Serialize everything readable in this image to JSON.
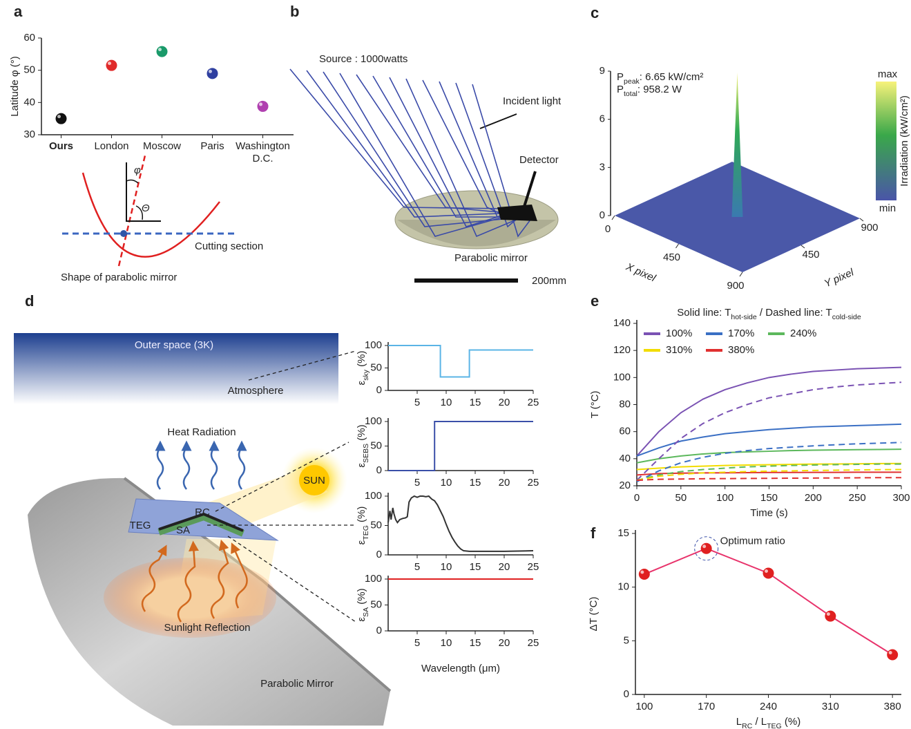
{
  "panel_labels": [
    "a",
    "b",
    "c",
    "d",
    "e",
    "f"
  ],
  "diagram_a": {
    "phi": "φ",
    "theta": "Θ",
    "cutting": "Cutting section",
    "shape": "Shape of parabolic mirror"
  },
  "diagram_b": {
    "source": "Source : 1000watts",
    "incident": "Incident light",
    "detector": "Detector",
    "mirror": "Parabolic mirror",
    "scale": "200mm"
  },
  "diagram_d": {
    "space": "Outer space (3K)",
    "atmosphere": "Atmosphere",
    "heat": "Heat Radiation",
    "sun": "SUN",
    "rc": "RC",
    "teg": "TEG",
    "sa": "SA",
    "reflection": "Sunlight Reflection",
    "mirror": "Parabolic Mirror"
  },
  "chart_data": [
    {
      "type": "scatter",
      "categories": [
        "Ours",
        "London",
        "Moscow",
        "Paris",
        "Washington D.C."
      ],
      "values": [
        35,
        51.5,
        55.8,
        49,
        38.8
      ],
      "colors": [
        "#111111",
        "#e02a2a",
        "#1a9a6a",
        "#2f3fa0",
        "#b040b0"
      ],
      "ylabel": "Latitude φ (°)",
      "ylim": [
        30,
        60
      ],
      "yticks": [
        30,
        40,
        50,
        60
      ]
    },
    {
      "type": "surface3d",
      "annotations": [
        [
          "P",
          "peak",
          ": 6.65 kW/cm²"
        ],
        [
          "P",
          "total",
          ": 958.2 W"
        ]
      ],
      "xlabel": "X pixel",
      "ylabel": "Y pixel",
      "xlim": [
        0,
        900
      ],
      "ylim": [
        0,
        900
      ],
      "zlim": [
        0,
        9
      ],
      "xticks": [
        0,
        450,
        900
      ],
      "yticks": [
        450,
        900
      ],
      "zticks": [
        0,
        3,
        6,
        9
      ],
      "peak": {
        "x": 450,
        "y": 450,
        "z": 9
      },
      "colorbar": {
        "label": "Irradiation (kW/cm²)",
        "max": "max",
        "min": "min"
      }
    },
    {
      "type": "line",
      "ylabel": [
        "ε",
        "sky",
        " (%)"
      ],
      "x": [
        0,
        9,
        9,
        14,
        14,
        25
      ],
      "series": [
        {
          "color": "#5ab4e6",
          "values": [
            100,
            100,
            30,
            30,
            90,
            90
          ]
        }
      ],
      "xlim": [
        0,
        25
      ],
      "ylim": [
        0,
        100
      ],
      "xticks": [
        5,
        10,
        15,
        20,
        25
      ],
      "yticks": [
        0,
        50,
        100
      ]
    },
    {
      "type": "line",
      "ylabel": [
        "ε",
        "SEBS",
        " (%)"
      ],
      "x": [
        0,
        8,
        8,
        25
      ],
      "series": [
        {
          "color": "#3a4fa8",
          "values": [
            0,
            0,
            100,
            100
          ]
        }
      ],
      "xlim": [
        0,
        25
      ],
      "ylim": [
        0,
        100
      ],
      "xticks": [
        5,
        10,
        15,
        20,
        25
      ],
      "yticks": [
        0,
        50,
        100
      ]
    },
    {
      "type": "line",
      "ylabel": [
        "ε",
        "TEG",
        " (%)"
      ],
      "x": [
        0,
        0.3,
        0.5,
        0.8,
        1,
        1.3,
        1.6,
        2,
        2.5,
        3,
        3.3,
        3.6,
        4,
        4.5,
        5,
        5.5,
        6,
        6.5,
        7,
        7.5,
        8,
        8.5,
        9,
        9.5,
        10,
        10.5,
        11,
        11.5,
        12,
        12.5,
        13,
        14,
        15,
        17,
        20,
        25
      ],
      "series": [
        {
          "color": "#333333",
          "values": [
            55,
            75,
            60,
            80,
            70,
            60,
            55,
            60,
            62,
            63,
            65,
            90,
            97,
            100,
            98,
            100,
            100,
            99,
            100,
            95,
            92,
            85,
            75,
            65,
            52,
            40,
            30,
            22,
            15,
            10,
            7,
            6,
            6,
            6,
            6,
            7
          ]
        }
      ],
      "xlim": [
        0,
        25
      ],
      "ylim": [
        0,
        100
      ],
      "xticks": [
        5,
        10,
        15,
        20,
        25
      ],
      "yticks": [
        0,
        50,
        100
      ]
    },
    {
      "type": "line",
      "ylabel": [
        "ε",
        "SA",
        " (%)"
      ],
      "xlabel": "Wavelength (μm)",
      "x": [
        0,
        25
      ],
      "series": [
        {
          "color": "#e02020",
          "values": [
            100,
            100
          ]
        }
      ],
      "xlim": [
        0,
        25
      ],
      "ylim": [
        0,
        100
      ],
      "xticks": [
        5,
        10,
        15,
        20,
        25
      ],
      "yticks": [
        0,
        50,
        100
      ]
    },
    {
      "type": "line",
      "title": [
        "Solid line: T",
        "hot-side",
        " / Dashed line: T",
        "cold-side"
      ],
      "xlabel": "Time (s)",
      "ylabel": "T (°C)",
      "x": [
        0,
        25,
        50,
        75,
        100,
        125,
        150,
        175,
        200,
        225,
        250,
        275,
        300
      ],
      "series": [
        {
          "name": "100%",
          "color": "#7a52b3",
          "values": [
            42,
            60,
            74,
            84,
            91,
            96,
            100,
            102.5,
            104.5,
            105.5,
            106.5,
            107,
            107.5
          ]
        },
        {
          "name": "170%",
          "color": "#3a6fc4",
          "values": [
            42,
            48,
            53,
            56,
            58.5,
            60,
            61.5,
            62.5,
            63.5,
            64,
            64.5,
            65,
            65.5
          ]
        },
        {
          "name": "240%",
          "color": "#5cb85c",
          "values": [
            37,
            40,
            42,
            43.5,
            44.5,
            45,
            45.5,
            46,
            46.3,
            46.5,
            46.7,
            46.8,
            47
          ]
        },
        {
          "name": "310%",
          "color": "#f2dc00",
          "values": [
            32,
            33,
            34,
            34.5,
            35,
            35.3,
            35.6,
            35.8,
            36,
            36.1,
            36.2,
            36.4,
            36.5
          ]
        },
        {
          "name": "380%",
          "color": "#e03030",
          "values": [
            28,
            29,
            29.3,
            29.5,
            29.6,
            29.7,
            29.8,
            29.8,
            29.9,
            29.9,
            30,
            30,
            30
          ]
        },
        {
          "color": "#7a52b3",
          "dash": true,
          "values": [
            24,
            40,
            55,
            66,
            74,
            80,
            85,
            88,
            91,
            93,
            94.5,
            95.5,
            96.5
          ]
        },
        {
          "color": "#3a6fc4",
          "dash": true,
          "values": [
            23,
            31,
            37,
            41,
            44,
            46,
            47.5,
            48.5,
            49.5,
            50.3,
            51,
            51.5,
            52
          ]
        },
        {
          "color": "#5cb85c",
          "dash": true,
          "values": [
            24,
            28,
            30.5,
            32,
            33,
            34,
            34.5,
            35,
            35.3,
            35.6,
            35.8,
            36,
            36
          ]
        },
        {
          "color": "#f2dc00",
          "dash": true,
          "values": [
            24,
            27,
            28.5,
            29.5,
            30,
            30.5,
            30.8,
            31,
            31.3,
            31.5,
            31.7,
            31.9,
            32
          ]
        },
        {
          "color": "#e03030",
          "dash": true,
          "values": [
            24,
            24.8,
            25,
            25.2,
            25.3,
            25.4,
            25.5,
            25.6,
            25.7,
            25.8,
            25.9,
            26,
            26
          ]
        }
      ],
      "xlim": [
        0,
        300
      ],
      "ylim": [
        20,
        140
      ],
      "xticks": [
        0,
        50,
        100,
        150,
        200,
        250,
        300
      ],
      "yticks": [
        20,
        40,
        60,
        80,
        100,
        120,
        140
      ]
    },
    {
      "type": "line",
      "annotation": "Optimum ratio",
      "xlabel": [
        "L",
        "RC",
        " / L",
        "TEG",
        " (%)"
      ],
      "ylabel": "ΔT (°C)",
      "x": [
        100,
        170,
        240,
        310,
        380
      ],
      "values": [
        11.2,
        13.6,
        11.3,
        7.3,
        3.7
      ],
      "color": "#e8336b",
      "marker_color": "#e02020",
      "xlim": [
        90,
        390
      ],
      "ylim": [
        0,
        15
      ],
      "xticks": [
        100,
        170,
        240,
        310,
        380
      ],
      "yticks": [
        0,
        5,
        10,
        15
      ]
    }
  ]
}
